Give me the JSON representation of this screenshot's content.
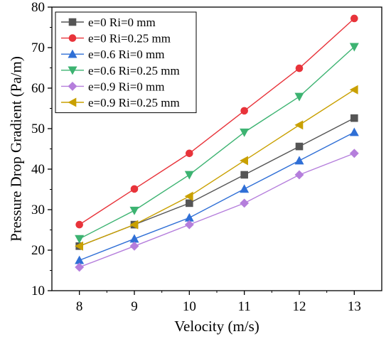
{
  "chart_data": {
    "type": "line",
    "xlabel": "Velocity (m/s)",
    "ylabel": "Pressure Drop Gradient (Pa/m)",
    "x": [
      8,
      9,
      10,
      11,
      12,
      13
    ],
    "xlim": [
      7.5,
      13.5
    ],
    "ylim": [
      10,
      80
    ],
    "xticks": [
      "8",
      "9",
      "10",
      "11",
      "12",
      "13"
    ],
    "yticks": [
      "10",
      "20",
      "30",
      "40",
      "50",
      "60",
      "70",
      "80"
    ],
    "grid": false,
    "legend_position": "top-left",
    "series": [
      {
        "name": "e=0 Ri=0 mm",
        "color": "#555555",
        "marker": "square",
        "values": [
          21.0,
          26.3,
          31.6,
          38.6,
          45.6,
          52.6
        ]
      },
      {
        "name": "e=0 Ri=0.25 mm",
        "color": "#e8333a",
        "marker": "circle",
        "values": [
          26.3,
          35.1,
          43.9,
          54.4,
          64.9,
          77.2
        ]
      },
      {
        "name": "e=0.6 Ri=0 mm",
        "color": "#2f6fd6",
        "marker": "triangle-up",
        "values": [
          17.5,
          22.8,
          28.0,
          35.1,
          42.1,
          49.1
        ]
      },
      {
        "name": "e=0.6 Ri=0.25 mm",
        "color": "#3cb371",
        "marker": "triangle-down",
        "values": [
          22.8,
          29.8,
          38.6,
          49.1,
          57.9,
          70.2
        ]
      },
      {
        "name": "e=0.9 Ri=0 mm",
        "color": "#b57edc",
        "marker": "diamond",
        "values": [
          15.8,
          21.0,
          26.3,
          31.6,
          38.6,
          43.9
        ]
      },
      {
        "name": "e=0.9 Ri=0.25 mm",
        "color": "#c9a000",
        "marker": "triangle-left",
        "values": [
          21.0,
          26.3,
          33.3,
          42.1,
          50.9,
          59.6
        ]
      }
    ]
  }
}
